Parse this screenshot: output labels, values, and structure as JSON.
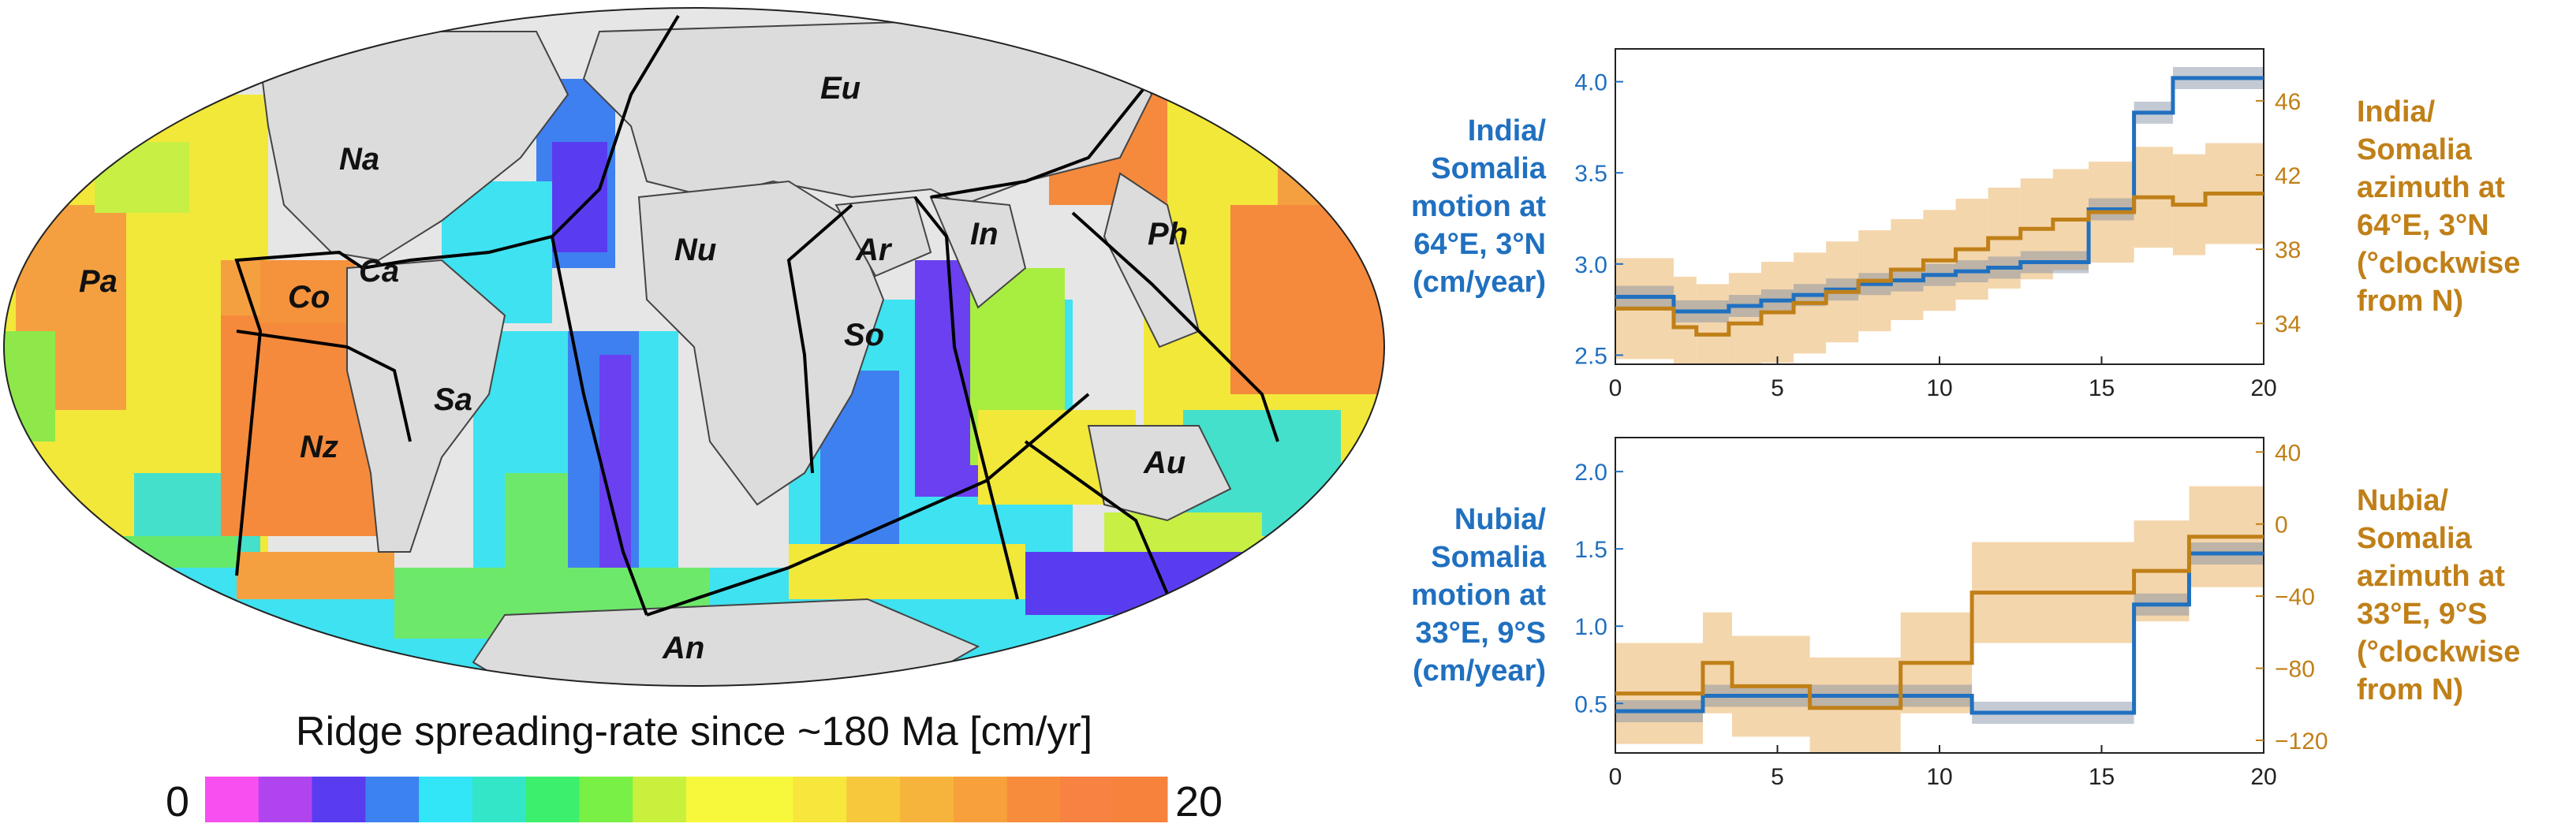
{
  "map": {
    "plate_labels": [
      {
        "id": "eu",
        "text": "Eu"
      },
      {
        "id": "na",
        "text": "Na"
      },
      {
        "id": "nu",
        "text": "Nu"
      },
      {
        "id": "ar",
        "text": "Ar"
      },
      {
        "id": "in",
        "text": "In"
      },
      {
        "id": "ph",
        "text": "Ph"
      },
      {
        "id": "pa",
        "text": "Pa"
      },
      {
        "id": "co",
        "text": "Co"
      },
      {
        "id": "ca",
        "text": "Ca"
      },
      {
        "id": "so",
        "text": "So"
      },
      {
        "id": "sa",
        "text": "Sa"
      },
      {
        "id": "nz",
        "text": "Nz"
      },
      {
        "id": "au",
        "text": "Au"
      },
      {
        "id": "an",
        "text": "An"
      }
    ],
    "colorbar": {
      "title": "Ridge spreading-rate since ~180 Ma [cm/yr]",
      "min_label": "0",
      "max_label": "20",
      "colors": [
        "#f84ff0",
        "#b045f0",
        "#5a3cf0",
        "#3c82f0",
        "#33e6f7",
        "#33e6c8",
        "#3cf06e",
        "#78f046",
        "#c8f03c",
        "#f7f73c",
        "#f7f73c",
        "#f7e63c",
        "#f7c83c",
        "#f7b43c",
        "#f7a03c",
        "#f78c3c",
        "#f78241",
        "#f7823c"
      ]
    }
  },
  "chart_data": [
    {
      "type": "line",
      "xlim": [
        0,
        20
      ],
      "xticks": [
        "0",
        "5",
        "10",
        "15",
        "20"
      ],
      "left_axis": {
        "label": [
          "India/",
          "Somalia",
          "motion at",
          "64°E, 3°N",
          "(cm/year)"
        ],
        "color": "#2070c0",
        "ylim": [
          2.45,
          4.18
        ],
        "ticks": [
          2.5,
          3.0,
          3.5,
          4.0
        ],
        "tick_labels": [
          "2.5",
          "3.0",
          "3.5",
          "4.0"
        ]
      },
      "right_axis": {
        "label": [
          "India/",
          "Somalia",
          "azimuth at",
          "64°E, 3°N",
          "(°clockwise",
          "from N)"
        ],
        "color": "#c08018",
        "ylim": [
          31.8,
          48.8
        ],
        "ticks": [
          34,
          38,
          42,
          46
        ],
        "tick_labels": [
          "34",
          "38",
          "42",
          "46"
        ]
      },
      "series": [
        {
          "axis": "left",
          "x": [
            0,
            1.8,
            1.8,
            3.5,
            3.5,
            4.5,
            4.5,
            5.5,
            5.5,
            6.5,
            6.5,
            7.5,
            7.5,
            8.5,
            8.5,
            9.5,
            9.5,
            10.5,
            10.5,
            11.5,
            11.5,
            12.5,
            12.5,
            14.6,
            14.6,
            16,
            16,
            17.2,
            17.2,
            20
          ],
          "y": [
            2.82,
            2.82,
            2.74,
            2.74,
            2.77,
            2.77,
            2.8,
            2.8,
            2.83,
            2.83,
            2.86,
            2.86,
            2.89,
            2.89,
            2.91,
            2.91,
            2.94,
            2.94,
            2.96,
            2.96,
            2.98,
            2.98,
            3.01,
            3.01,
            3.3,
            3.3,
            3.83,
            3.83,
            4.02,
            4.02
          ]
        },
        {
          "axis": "right",
          "x": [
            0,
            1.8,
            1.8,
            2.5,
            2.5,
            3.5,
            3.5,
            4.5,
            4.5,
            5.5,
            5.5,
            6.5,
            6.5,
            7.5,
            7.5,
            8.5,
            8.5,
            9.5,
            9.5,
            10.5,
            10.5,
            11.5,
            11.5,
            12.5,
            12.5,
            13.5,
            13.5,
            14.6,
            14.6,
            16,
            16,
            17.2,
            17.2,
            18.2,
            18.2,
            20
          ],
          "y": [
            34.8,
            34.8,
            33.8,
            33.8,
            33.4,
            33.4,
            34.0,
            34.0,
            34.6,
            34.6,
            35.1,
            35.1,
            35.7,
            35.7,
            36.3,
            36.3,
            36.9,
            36.9,
            37.4,
            37.4,
            38.0,
            38.0,
            38.6,
            38.6,
            39.1,
            39.1,
            39.6,
            39.6,
            40.0,
            40.0,
            40.8,
            40.8,
            40.4,
            40.4,
            41.0,
            41.0
          ]
        }
      ]
    },
    {
      "type": "line",
      "xlim": [
        0,
        20
      ],
      "xticks": [
        "0",
        "5",
        "10",
        "15",
        "20"
      ],
      "left_axis": {
        "label": [
          "Nubia/",
          "Somalia",
          "motion at",
          "33°E, 9°S",
          "(cm/year)"
        ],
        "color": "#2070c0",
        "ylim": [
          0.18,
          2.22
        ],
        "ticks": [
          0.5,
          1.0,
          1.5,
          2.0
        ],
        "tick_labels": [
          "0.5",
          "1.0",
          "1.5",
          "2.0"
        ]
      },
      "right_axis": {
        "label": [
          "Nubia/",
          "Somalia",
          "azimuth at",
          "33°E, 9°S",
          "(°clockwise",
          "from N)"
        ],
        "color": "#c08018",
        "ylim": [
          -127,
          48
        ],
        "ticks": [
          -120,
          -80,
          -40,
          0,
          40
        ],
        "tick_labels": [
          "−120",
          "−80",
          "−40",
          "0",
          "40"
        ]
      },
      "series": [
        {
          "axis": "left",
          "x": [
            0,
            2.7,
            2.7,
            11,
            11,
            16,
            16,
            17.7,
            17.7,
            20
          ],
          "y": [
            0.45,
            0.45,
            0.55,
            0.55,
            0.44,
            0.44,
            1.14,
            1.14,
            1.47,
            1.47
          ]
        },
        {
          "axis": "right",
          "x": [
            0,
            2.7,
            2.7,
            3.6,
            3.6,
            6,
            6,
            8.8,
            8.8,
            11,
            11,
            16,
            16,
            17.7,
            17.7,
            20
          ],
          "y": [
            -94,
            -94,
            -77,
            -77,
            -90,
            -90,
            -102,
            -102,
            -77,
            -77,
            -38,
            -38,
            -26,
            -26,
            -7,
            -7
          ]
        }
      ]
    }
  ]
}
